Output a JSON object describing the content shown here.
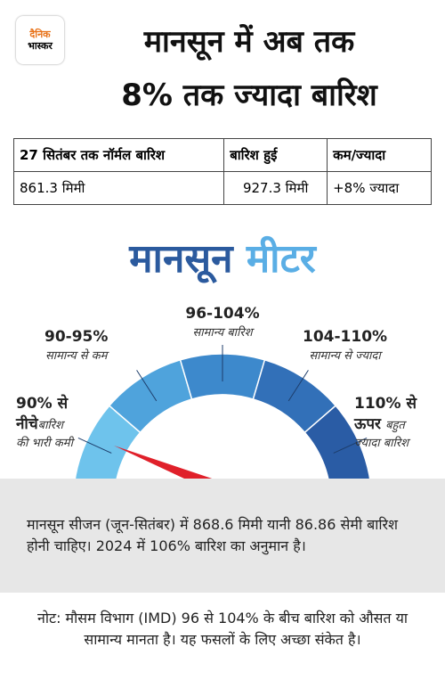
{
  "logo": [
    "दैनिक",
    "भास्कर"
  ],
  "header": {
    "title": [
      "मानसून में अब तक",
      "8% तक ज्यादा बारिश"
    ]
  },
  "table": {
    "header": [
      "27 सितंबर तक नॉर्मल बारिश",
      "बारिश हुई",
      "कम/ज्यादा"
    ],
    "rows": [
      [
        "861.3 मिमी",
        "927.3 मिमी",
        "+8% ज्यादा"
      ]
    ]
  },
  "meter": {
    "title": [
      "मानसून",
      "मीटर"
    ],
    "segments": [
      {
        "range": [
          "90% से",
          "नीचे"
        ],
        "label": [
          "बारिश",
          "की भारी कमी"
        ]
      },
      {
        "range": [
          "90-95%"
        ],
        "label": [
          "सामान्य से कम"
        ]
      },
      {
        "range": [
          "96-104%"
        ],
        "label": [
          "सामान्य बारिश"
        ]
      },
      {
        "range": [
          "104-110%"
        ],
        "label": [
          "सामान्य से ज्यादा"
        ]
      },
      {
        "range": [
          "110% से",
          "ऊपर"
        ],
        "label": [
          "बहुत",
          "ज्यादा बारिश"
        ]
      }
    ]
  },
  "info": "मानसून सीजन (जून-सितंबर) में 868.6 मिमी यानी 86.86 सेमी बारिश होनी चाहिए। 2024 में 106% बारिश का अनुमान है।",
  "note": "नोट: मौसम विभाग (IMD) 96 से 104% के बीच बारिश को औसत या सामान्य मानता है। यह फसलों के लिए अच्छा संकेत है।"
}
